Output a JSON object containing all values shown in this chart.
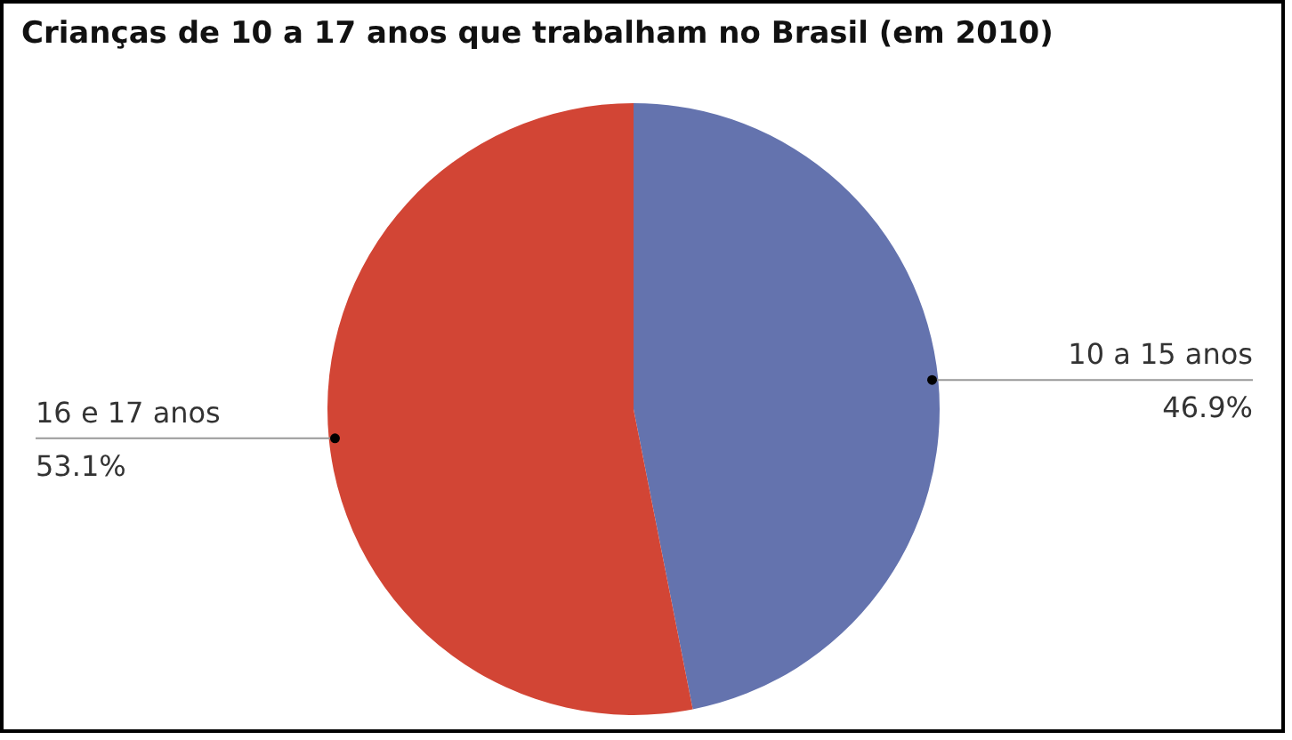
{
  "chart_data": {
    "type": "pie",
    "title": "Crianças de 10 a 17 anos que trabalham no Brasil (em 2010)",
    "categories": [
      "10 a 15 anos",
      "16 e 17 anos"
    ],
    "values": [
      46.9,
      53.1
    ],
    "colors": [
      "#6473ae",
      "#d24535"
    ],
    "value_labels": [
      "46.9%",
      "53.1%"
    ]
  }
}
